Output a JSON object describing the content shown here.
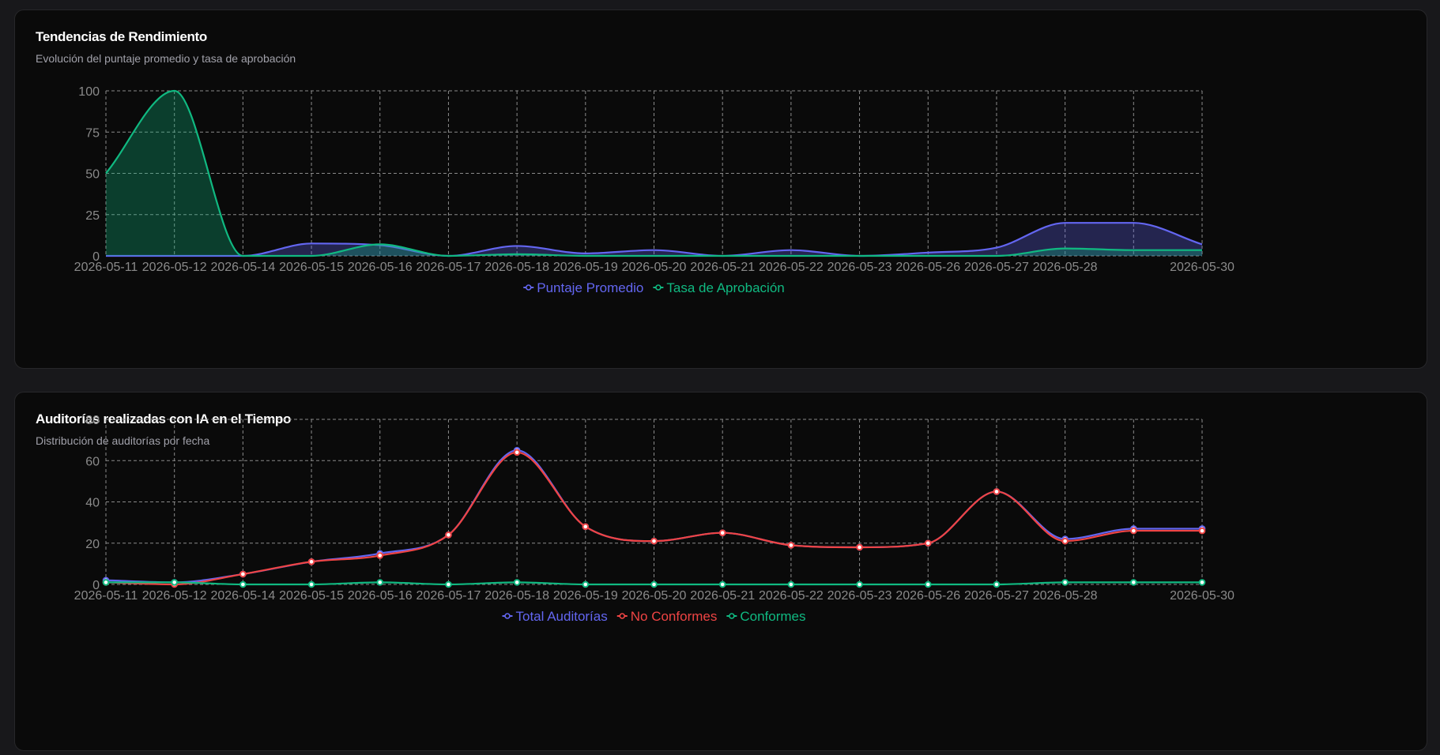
{
  "charts": [
    {
      "title": "Tendencias de Rendimiento",
      "subtitle": "Evolución del puntaje promedio y tasa de aprobación"
    },
    {
      "title": "Auditorías realizadas con IA en el Tiempo",
      "subtitle": "Distribución de auditorías por fecha"
    }
  ],
  "chart_data": [
    {
      "type": "area",
      "title": "Tendencias de Rendimiento",
      "subtitle": "Evolución del puntaje promedio y tasa de aprobación",
      "categories": [
        "2026-05-11",
        "2026-05-12",
        "2026-05-14",
        "2026-05-15",
        "2026-05-16",
        "2026-05-17",
        "2026-05-18",
        "2026-05-19",
        "2026-05-20",
        "2026-05-21",
        "2026-05-22",
        "2026-05-23",
        "2026-05-26",
        "2026-05-27",
        "2026-05-28",
        "",
        "2026-05-30"
      ],
      "series": [
        {
          "name": "Puntaje Promedio",
          "color": "#6366f1",
          "fill": true,
          "values": [
            0,
            0,
            0,
            7.5,
            6.5,
            0,
            6,
            1.5,
            3.5,
            0,
            3.5,
            0,
            2,
            5,
            20,
            20,
            7
          ]
        },
        {
          "name": "Tasa de Aprobación",
          "color": "#10b981",
          "fill": true,
          "values": [
            50,
            100,
            0,
            0,
            7,
            0,
            1,
            0,
            0,
            0,
            0,
            0,
            0,
            0,
            4.5,
            3.5,
            3.5
          ]
        }
      ],
      "ylim": [
        0,
        100
      ],
      "yticks": [
        0,
        25,
        50,
        75,
        100
      ],
      "grid": true,
      "legend": "bottom-center",
      "show_points": false
    },
    {
      "type": "line",
      "title": "Auditorías realizadas con IA en el Tiempo",
      "subtitle": "Distribución de auditorías por fecha",
      "categories": [
        "2026-05-11",
        "2026-05-12",
        "2026-05-14",
        "2026-05-15",
        "2026-05-16",
        "2026-05-17",
        "2026-05-18",
        "2026-05-19",
        "2026-05-20",
        "2026-05-21",
        "2026-05-22",
        "2026-05-23",
        "2026-05-26",
        "2026-05-27",
        "2026-05-28",
        "",
        "2026-05-30"
      ],
      "series": [
        {
          "name": "Total Auditorías",
          "color": "#6366f1",
          "fill": false,
          "values": [
            2,
            1,
            5,
            11,
            15,
            24,
            65,
            28,
            21,
            25,
            19,
            18,
            20,
            45,
            22,
            27,
            27
          ]
        },
        {
          "name": "No Conformes",
          "color": "#ef4444",
          "fill": false,
          "values": [
            1,
            0,
            5,
            11,
            14,
            24,
            64,
            28,
            21,
            25,
            19,
            18,
            20,
            45,
            21,
            26,
            26
          ]
        },
        {
          "name": "Conformes",
          "color": "#10b981",
          "fill": false,
          "values": [
            1,
            1,
            0,
            0,
            1,
            0,
            1,
            0,
            0,
            0,
            0,
            0,
            0,
            0,
            1,
            1,
            1
          ]
        }
      ],
      "ylim": [
        0,
        80
      ],
      "yticks": [
        0,
        20,
        40,
        60,
        80
      ],
      "grid": true,
      "legend": "bottom-center",
      "show_points": true
    }
  ]
}
